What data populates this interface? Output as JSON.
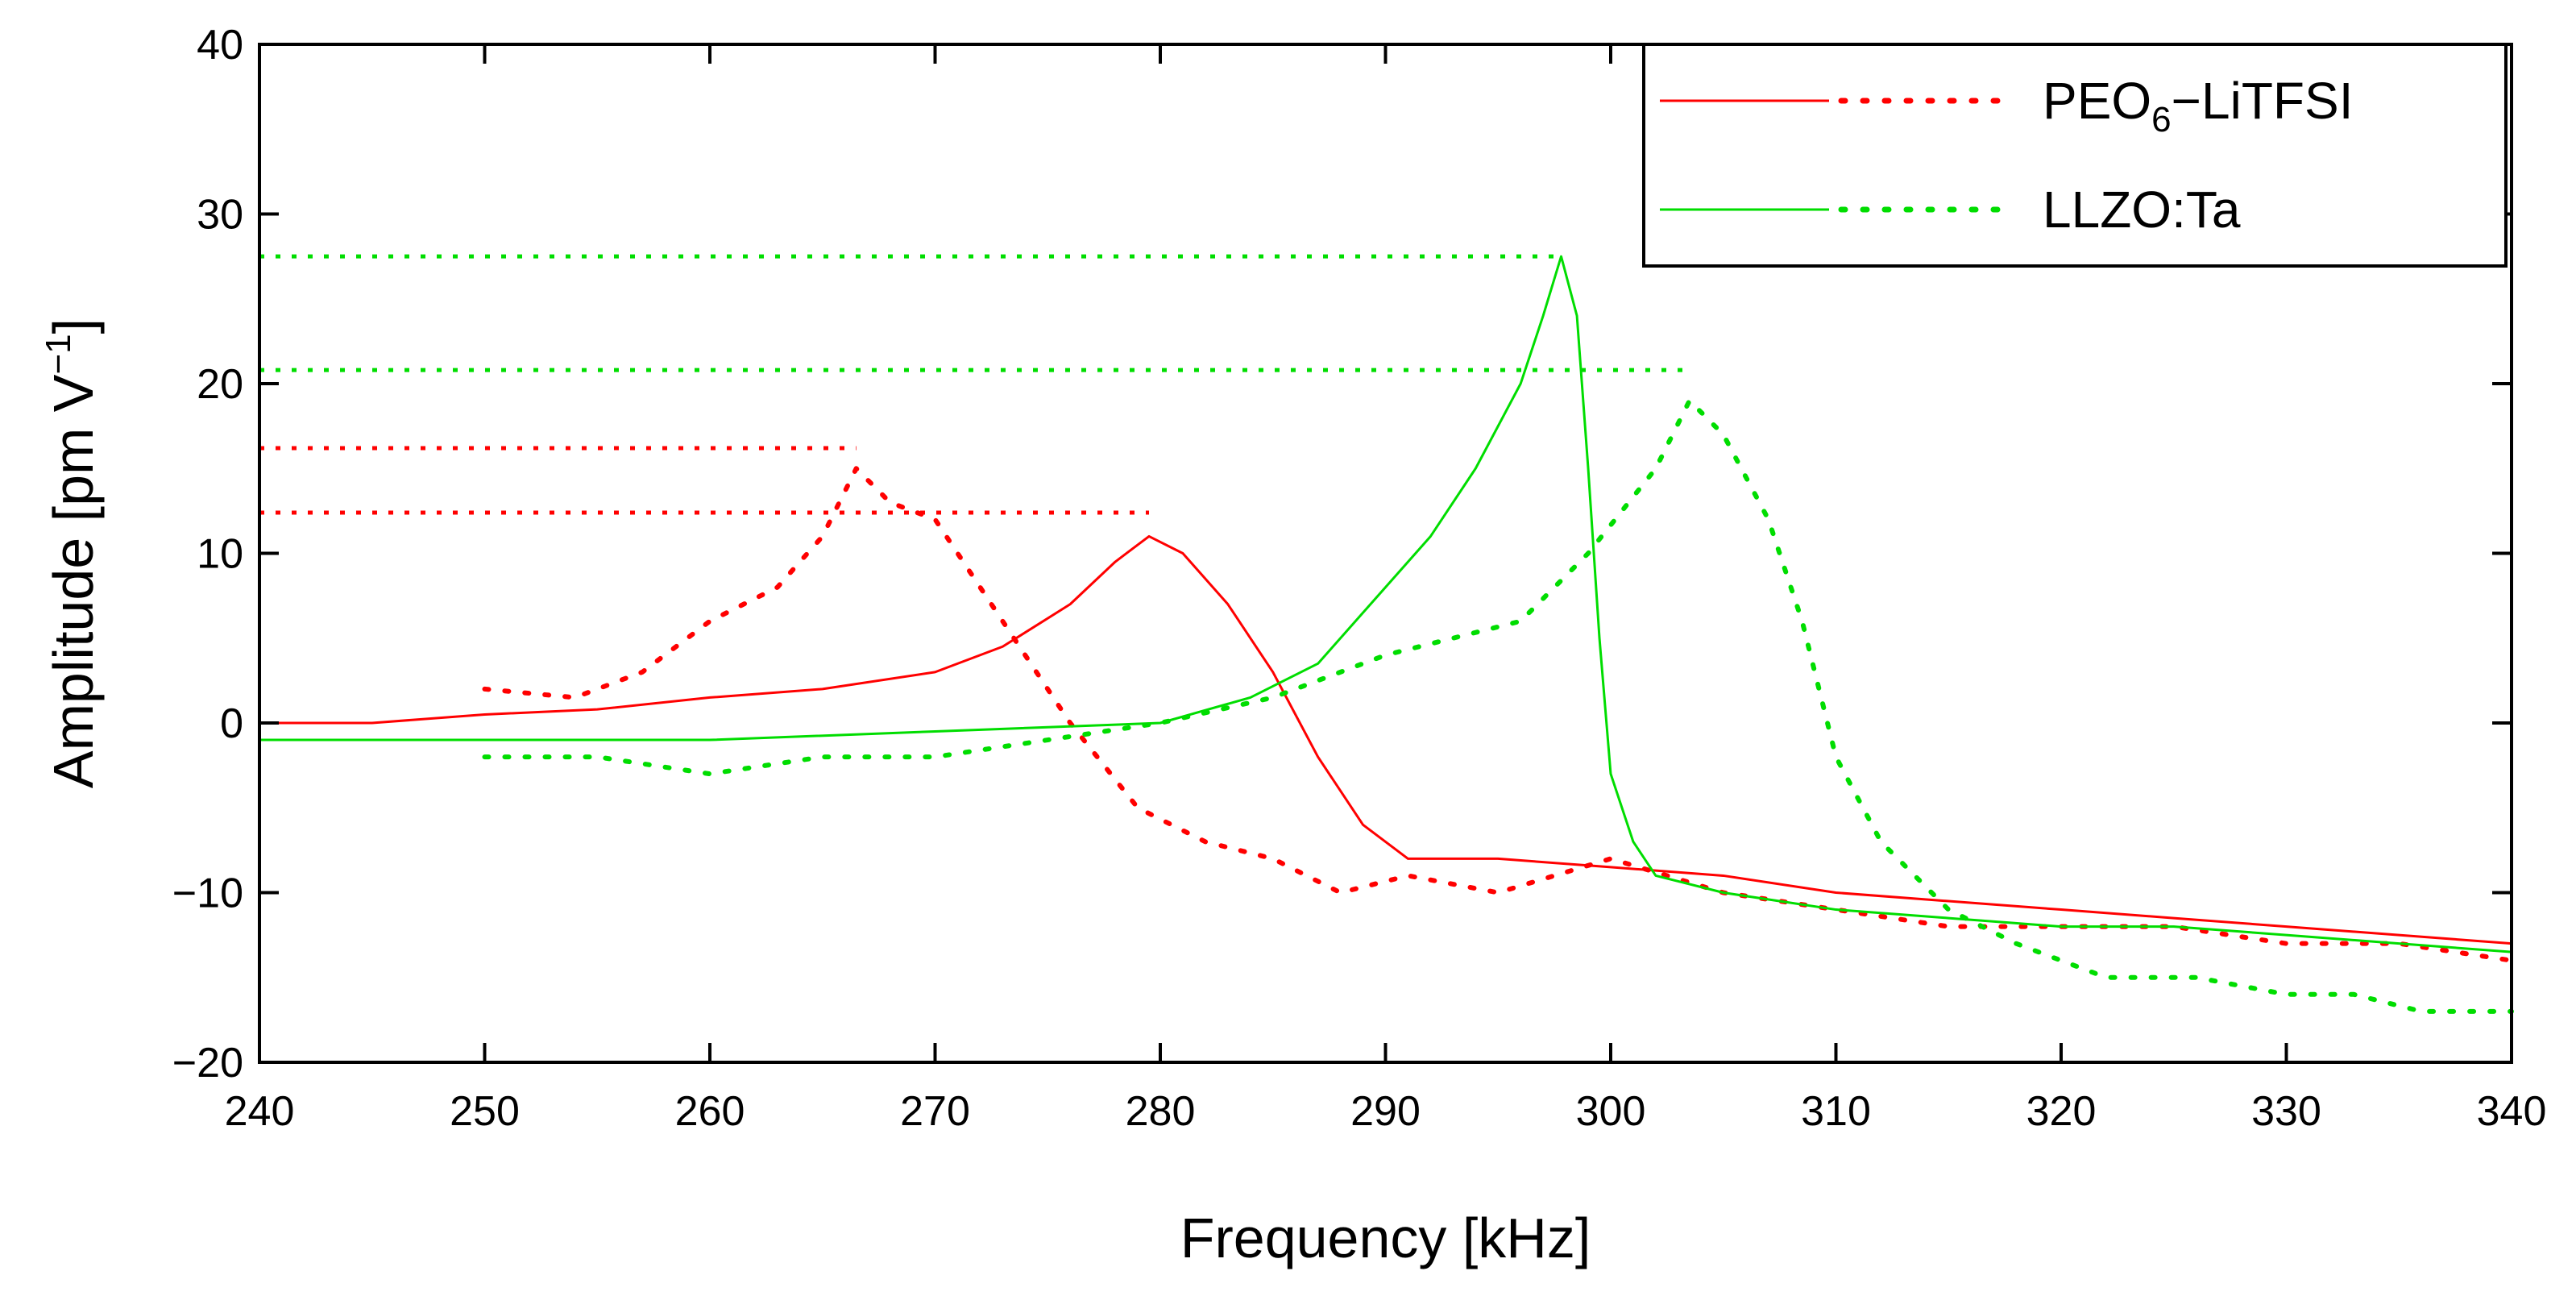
{
  "chart_data": {
    "type": "line",
    "title": "",
    "xlabel": "Frequency [kHz]",
    "ylabel": "Amplitude [pm V⁻¹]",
    "xlim": [
      240,
      340
    ],
    "ylim": [
      -20,
      40
    ],
    "xticks": [
      240,
      250,
      260,
      270,
      280,
      290,
      300,
      310,
      320,
      330,
      340
    ],
    "yticks": [
      -20,
      -10,
      0,
      10,
      20,
      30,
      40
    ],
    "legend": {
      "position": "top-right",
      "entries": [
        {
          "label_main": "PEO",
          "label_sub": "6",
          "label_rest": "−LiTFSI",
          "color": "#ff0000"
        },
        {
          "label_main": "LLZO:Ta",
          "label_sub": "",
          "label_rest": "",
          "color": "#00dd00"
        }
      ]
    },
    "series": [
      {
        "name": "PEO6-LiTFSI (solid)",
        "color": "#ff0000",
        "style": "solid",
        "x": [
          240,
          245,
          250,
          255,
          260,
          265,
          270,
          273,
          276,
          278,
          279.5,
          281,
          283,
          285,
          287,
          289,
          291,
          295,
          300,
          305,
          310,
          315,
          320,
          325,
          330,
          335,
          340
        ],
        "y": [
          0,
          0,
          0.5,
          0.8,
          1.5,
          2,
          3,
          4.5,
          7,
          9.5,
          11,
          10,
          7,
          3,
          -2,
          -6,
          -8,
          -8,
          -8.5,
          -9,
          -10,
          -10.5,
          -11,
          -11.5,
          -12,
          -12.5,
          -13
        ]
      },
      {
        "name": "PEO6-LiTFSI (dotted)",
        "color": "#ff0000",
        "style": "dotted",
        "x": [
          250,
          254,
          257,
          260,
          263,
          265,
          266.5,
          268,
          270,
          272,
          274,
          276,
          279,
          282,
          285,
          288,
          291,
          295,
          300,
          305,
          310,
          315,
          320,
          325,
          330,
          335,
          340
        ],
        "y": [
          2,
          1.5,
          3,
          6,
          8,
          11,
          15,
          13,
          12,
          8,
          4,
          0,
          -5,
          -7,
          -8,
          -10,
          -9,
          -10,
          -8,
          -10,
          -11,
          -12,
          -12,
          -12,
          -13,
          -13,
          -14
        ]
      },
      {
        "name": "LLZO:Ta (solid)",
        "color": "#00dd00",
        "style": "solid",
        "x": [
          240,
          250,
          260,
          270,
          280,
          284,
          287,
          290,
          292,
          294,
          296,
          297,
          297.8,
          298.5,
          299,
          299.5,
          300,
          301,
          302,
          305,
          310,
          315,
          320,
          325,
          330,
          335,
          340
        ],
        "y": [
          -1,
          -1,
          -1,
          -0.5,
          0,
          1.5,
          3.5,
          8,
          11,
          15,
          20,
          24,
          27.5,
          24,
          15,
          5,
          -3,
          -7,
          -9,
          -10,
          -11,
          -11.5,
          -12,
          -12,
          -12.5,
          -13,
          -13.5
        ]
      },
      {
        "name": "LLZO:Ta (dotted)",
        "color": "#00dd00",
        "style": "dotted",
        "x": [
          250,
          255,
          260,
          265,
          270,
          275,
          280,
          285,
          290,
          293,
          296,
          299,
          302,
          303.5,
          305,
          307,
          308.5,
          310,
          312,
          315,
          318,
          322,
          326,
          330,
          333,
          336,
          340
        ],
        "y": [
          -2,
          -2,
          -3,
          -2,
          -2,
          -1,
          0,
          1.5,
          4,
          5,
          6,
          10,
          15,
          19,
          17,
          12,
          6,
          -2,
          -7,
          -11,
          -13,
          -15,
          -15,
          -16,
          -16,
          -17,
          -17
        ]
      }
    ],
    "reference_lines": [
      {
        "color": "#ff0000",
        "y": 16.2,
        "x_start": 240,
        "x_end": 266.5
      },
      {
        "color": "#ff0000",
        "y": 12.4,
        "x_start": 240,
        "x_end": 279.5
      },
      {
        "color": "#00dd00",
        "y": 27.5,
        "x_start": 240,
        "x_end": 297.8
      },
      {
        "color": "#00dd00",
        "y": 20.8,
        "x_start": 240,
        "x_end": 303.5
      }
    ]
  }
}
